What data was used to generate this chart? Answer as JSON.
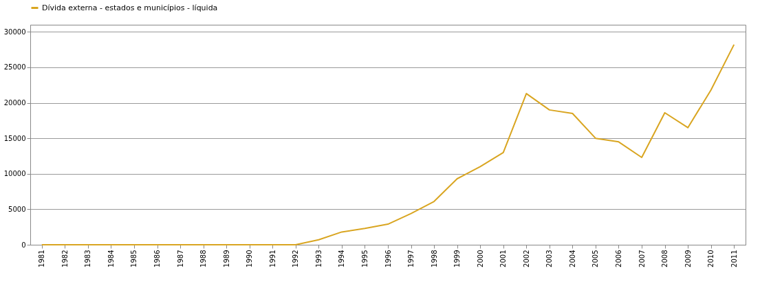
{
  "chart_data": {
    "type": "line",
    "categories": [
      "1981",
      "1982",
      "1983",
      "1984",
      "1985",
      "1986",
      "1987",
      "1988",
      "1989",
      "1990",
      "1991",
      "1992",
      "1993",
      "1994",
      "1995",
      "1996",
      "1997",
      "1998",
      "1999",
      "2000",
      "2001",
      "2002",
      "2003",
      "2004",
      "2005",
      "2006",
      "2007",
      "2008",
      "2009",
      "2010",
      "2011"
    ],
    "series": [
      {
        "name": "Dívida externa - estados e municípios - líquida",
        "color": "#d9a520",
        "values": [
          0,
          0,
          0,
          0,
          0,
          0,
          0,
          0,
          0,
          0,
          0,
          0,
          700,
          1800,
          2300,
          2900,
          4400,
          6100,
          9300,
          11000,
          13000,
          21300,
          19000,
          18500,
          15000,
          14500,
          12300,
          18600,
          16500,
          21800,
          28200
        ]
      }
    ],
    "ylim": [
      0,
      31000
    ],
    "yticks": [
      0,
      5000,
      10000,
      15000,
      20000,
      25000,
      30000
    ],
    "grid": "y",
    "legend": "top",
    "marker": "none",
    "line_style": "solid"
  }
}
